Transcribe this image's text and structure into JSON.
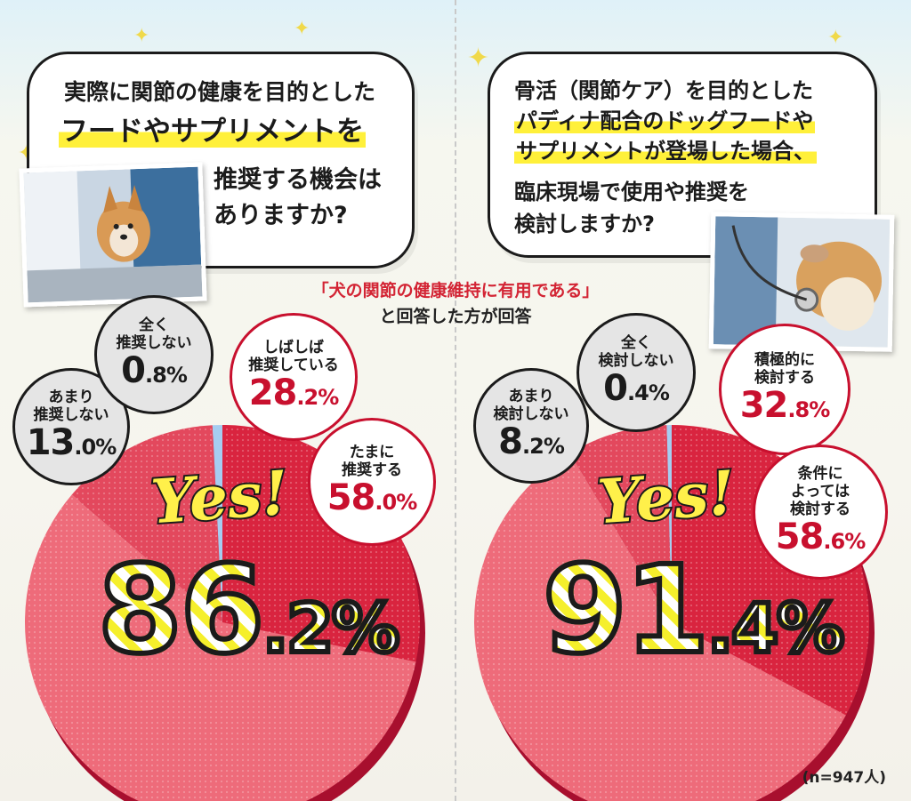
{
  "note_n": "(n=947人)",
  "center_note": {
    "line1": "「犬の関節の健康維持に有用である」",
    "line2": "と回答した方が回答"
  },
  "colors": {
    "red_dark": "#d9243f",
    "red_mid": "#e3485d",
    "red_light": "#ee6b7a",
    "gray": "#bdbdbd",
    "blue": "#a6cdf1",
    "accent": "#c8102e"
  },
  "left": {
    "question_lines": [
      "実際に関節の健康を目的とした",
      "フードやサプリメントを",
      "推奨する機会は",
      "ありますか?"
    ],
    "yes_label": "Yes!",
    "total_main": "86",
    "total_dec": ".2",
    "total_unit": "%",
    "slices": [
      {
        "label_lines": [
          "しばしば",
          "推奨している"
        ],
        "value_main": "28",
        "value_dec": ".2",
        "unit": "%"
      },
      {
        "label_lines": [
          "たまに",
          "推奨する"
        ],
        "value_main": "58",
        "value_dec": ".0",
        "unit": "%"
      },
      {
        "label_lines": [
          "あまり",
          "推奨しない"
        ],
        "value_main": "13",
        "value_dec": ".0",
        "unit": "%"
      },
      {
        "label_lines": [
          "全く",
          "推奨しない"
        ],
        "value_main": "0",
        "value_dec": ".8",
        "unit": "%"
      }
    ]
  },
  "right": {
    "question_lines": [
      "骨活（関節ケア）を目的とした",
      "パディナ配合のドッグフードや",
      "サプリメントが登場した場合、",
      "臨床現場で使用や推奨を",
      "検討しますか?"
    ],
    "yes_label": "Yes!",
    "total_main": "91",
    "total_dec": ".4",
    "total_unit": "%",
    "slices": [
      {
        "label_lines": [
          "積極的に",
          "検討する"
        ],
        "value_main": "32",
        "value_dec": ".8",
        "unit": "%"
      },
      {
        "label_lines": [
          "条件に",
          "よっては",
          "検討する"
        ],
        "value_main": "58",
        "value_dec": ".6",
        "unit": "%"
      },
      {
        "label_lines": [
          "あまり",
          "検討しない"
        ],
        "value_main": "8",
        "value_dec": ".2",
        "unit": "%"
      },
      {
        "label_lines": [
          "全く",
          "検討しない"
        ],
        "value_main": "0",
        "value_dec": ".4",
        "unit": "%"
      }
    ]
  },
  "chart_data": [
    {
      "type": "pie",
      "title": "実際に関節の健康を目的としたフードやサプリメントを推奨する機会はありますか?",
      "categories": [
        "しばしば推奨している",
        "たまに推奨する",
        "あまり推奨しない",
        "全く推奨しない"
      ],
      "values": [
        28.2,
        58.0,
        13.0,
        0.8
      ],
      "highlight_total": 86.2
    },
    {
      "type": "pie",
      "title": "骨活（関節ケア）を目的としたパディナ配合のドッグフードやサプリメントが登場した場合、臨床現場で使用や推奨を検討しますか?",
      "categories": [
        "積極的に検討する",
        "条件によっては検討する",
        "あまり検討しない",
        "全く検討しない"
      ],
      "values": [
        32.8,
        58.6,
        8.2,
        0.4
      ],
      "highlight_total": 91.4
    }
  ]
}
